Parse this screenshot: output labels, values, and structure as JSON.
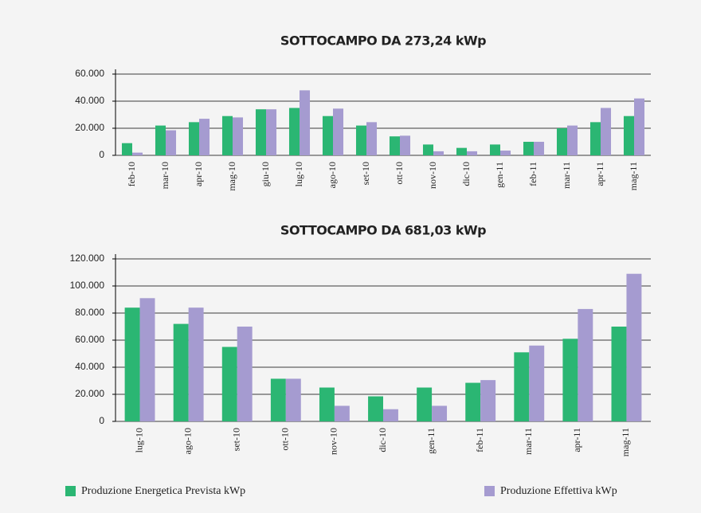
{
  "chart_data": [
    {
      "type": "bar",
      "title": "SOTTOCAMPO DA 273,24 kWp",
      "categories": [
        "feb-10",
        "mar-10",
        "apr-10",
        "mag-10",
        "giu-10",
        "lug-10",
        "ago-10",
        "set-10",
        "ott-10",
        "nov-10",
        "dic-10",
        "gen-11",
        "feb-11",
        "mar-11",
        "apr-11",
        "mag-11"
      ],
      "series": [
        {
          "name": "Produzione Energetica Prevista kWp",
          "color": "#2bb673",
          "values": [
            9000,
            22000,
            24500,
            29000,
            34000,
            35000,
            29000,
            22000,
            14000,
            8000,
            5500,
            8000,
            10000,
            20000,
            24500,
            29000
          ]
        },
        {
          "name": "Produzione Effettiva kWp",
          "color": "#a59bd0",
          "values": [
            2000,
            18500,
            27000,
            28000,
            34000,
            48000,
            34500,
            24500,
            14500,
            3000,
            3000,
            3500,
            10000,
            22000,
            35000,
            42000
          ]
        }
      ],
      "ylim": [
        0,
        60000
      ],
      "yticks": [
        0,
        {
          "value": 20000,
          "label": "20.000"
        },
        {
          "value": 40000,
          "label": "40.000"
        },
        {
          "value": 60000,
          "label": "60.000"
        }
      ],
      "grid": true
    },
    {
      "type": "bar",
      "title": "SOTTOCAMPO DA 681,03 kWp",
      "categories": [
        "lug-10",
        "ago-10",
        "set-10",
        "ott-10",
        "nov-10",
        "dic-10",
        "gen-11",
        "feb-11",
        "mar-11",
        "apr-11",
        "mag-11"
      ],
      "series": [
        {
          "name": "Produzione Energetica Prevista kWp",
          "color": "#2bb673",
          "values": [
            84000,
            72000,
            55000,
            31500,
            25000,
            18500,
            25000,
            28500,
            51000,
            61000,
            70000
          ]
        },
        {
          "name": "Produzione Effettiva kWp",
          "color": "#a59bd0",
          "values": [
            91000,
            84000,
            70000,
            31500,
            11500,
            9000,
            11500,
            30500,
            56000,
            83000,
            109000
          ]
        }
      ],
      "ylim": [
        0,
        120000
      ],
      "yticks": [
        0,
        {
          "value": 20000,
          "label": "20.000"
        },
        {
          "value": 40000,
          "label": "40.000"
        },
        {
          "value": 60000,
          "label": "60.000"
        },
        {
          "value": 80000,
          "label": "80.000"
        },
        {
          "value": 100000,
          "label": "100.000"
        },
        {
          "value": 120000,
          "label": "120.000"
        }
      ],
      "grid": true
    }
  ]
}
